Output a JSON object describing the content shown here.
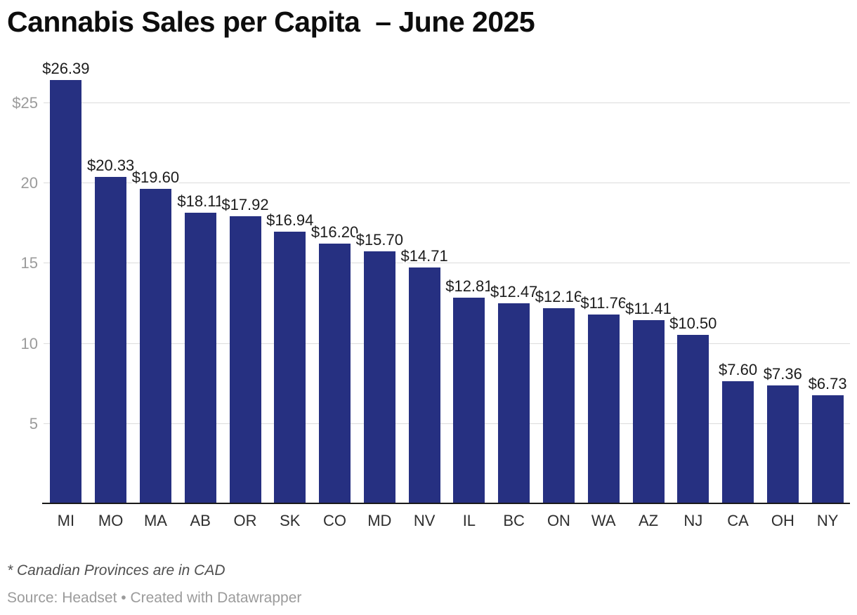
{
  "title": "Cannabis Sales per Capita  – June 2025",
  "footnote": "* Canadian Provinces are in CAD",
  "source_line": "Source: Headset • Created with Datawrapper",
  "colors": {
    "bar": "#263081",
    "gridline": "#dcdcdc",
    "axis_line": "#1a1a1a",
    "ytick_text": "#9b9b9b",
    "value_label_text": "#1c1c1c",
    "xlabel_text": "#2e2e2e"
  },
  "chart_data": {
    "type": "bar",
    "title": "Cannabis Sales per Capita  – June 2025",
    "categories": [
      "MI",
      "MO",
      "MA",
      "AB",
      "OR",
      "SK",
      "CO",
      "MD",
      "NV",
      "IL",
      "BC",
      "ON",
      "WA",
      "AZ",
      "NJ",
      "CA",
      "OH",
      "NY"
    ],
    "values": [
      26.39,
      20.33,
      19.6,
      18.11,
      17.92,
      16.94,
      16.2,
      15.7,
      14.71,
      12.81,
      12.47,
      12.16,
      11.76,
      11.41,
      10.5,
      7.6,
      7.36,
      6.73
    ],
    "value_labels": [
      "$26.39",
      "$20.33",
      "$19.60",
      "$18.11",
      "$17.92",
      "$16.94",
      "$16.20",
      "$15.70",
      "$14.71",
      "$12.81",
      "$12.47",
      "$12.16",
      "$11.76",
      "$11.41",
      "$10.50",
      "$7.60",
      "$7.36",
      "$6.73"
    ],
    "xlabel": "",
    "ylabel": "",
    "ylim": [
      0,
      27.5
    ],
    "yticks": [
      5,
      10,
      15,
      20,
      25
    ],
    "ytick_labels": [
      "5",
      "10",
      "15",
      "20",
      "$25"
    ],
    "grid": "horizontal",
    "legend": "none",
    "bar_color": "#263081"
  }
}
